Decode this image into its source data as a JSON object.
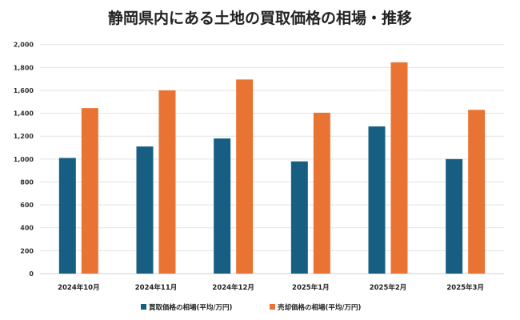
{
  "chart_data": {
    "type": "bar",
    "title": "静岡県内にある土地の買取価格の相場・推移",
    "categories": [
      "2024年10月",
      "2024年11月",
      "2024年12月",
      "2025年1月",
      "2025年2月",
      "2025年3月"
    ],
    "series": [
      {
        "name": "買取価格の相場(平均/万円)",
        "color": "#175f82",
        "values": [
          1010,
          1110,
          1180,
          980,
          1285,
          1000
        ]
      },
      {
        "name": "売却価格の相場(平均/万円)",
        "color": "#e97333",
        "values": [
          1445,
          1600,
          1695,
          1405,
          1845,
          1430
        ]
      }
    ],
    "ylim": [
      0,
      2000
    ],
    "yticks": [
      "0",
      "200",
      "400",
      "600",
      "800",
      "1,000",
      "1,200",
      "1,400",
      "1,600",
      "1,800",
      "2,000"
    ],
    "grid": true,
    "legend": "bottom"
  }
}
